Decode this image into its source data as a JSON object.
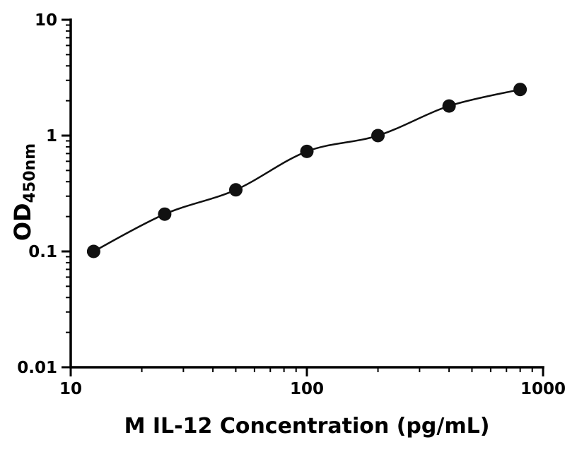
{
  "chart_data": {
    "type": "scatter",
    "has_line": true,
    "x": [
      12.5,
      25,
      50,
      100,
      200,
      400,
      800
    ],
    "y": [
      0.1,
      0.21,
      0.34,
      0.73,
      1.0,
      1.8,
      2.5
    ],
    "xlabel": "M IL-12 Concentration (pg/mL)",
    "ylabel_main": "OD",
    "ylabel_sub": "450nm",
    "xscale": "log",
    "yscale": "log",
    "xlim": [
      10,
      1000
    ],
    "ylim": [
      0.01,
      10
    ],
    "x_ticks": [
      10,
      100,
      1000
    ],
    "x_tick_labels": [
      "10",
      "100",
      "1000"
    ],
    "y_ticks": [
      10,
      1,
      0.1,
      0.01
    ],
    "y_tick_labels": [
      "10",
      "1",
      "0.1",
      "0.01"
    ],
    "marker_color": "#111111",
    "line_color": "#111111",
    "axis_color": "#000000",
    "grid": false,
    "legend": null
  }
}
